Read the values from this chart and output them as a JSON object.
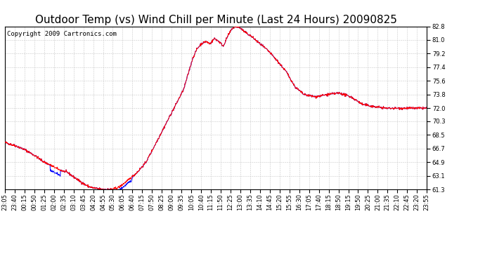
{
  "title": "Outdoor Temp (vs) Wind Chill per Minute (Last 24 Hours) 20090825",
  "copyright_text": "Copyright 2009 Cartronics.com",
  "y_ticks": [
    61.3,
    63.1,
    64.9,
    66.7,
    68.5,
    70.3,
    72.0,
    73.8,
    75.6,
    77.4,
    79.2,
    81.0,
    82.8
  ],
  "y_min": 61.3,
  "y_max": 82.8,
  "x_labels": [
    "23:05",
    "23:40",
    "00:15",
    "00:50",
    "01:25",
    "02:00",
    "02:35",
    "03:10",
    "03:45",
    "04:20",
    "04:55",
    "05:30",
    "06:05",
    "06:40",
    "07:15",
    "07:50",
    "08:25",
    "09:00",
    "09:35",
    "10:05",
    "10:40",
    "11:15",
    "11:50",
    "12:25",
    "13:00",
    "13:35",
    "14:10",
    "14:45",
    "15:20",
    "15:55",
    "16:30",
    "17:05",
    "17:40",
    "18:15",
    "18:50",
    "19:15",
    "19:50",
    "20:25",
    "21:00",
    "21:35",
    "22:10",
    "22:45",
    "23:20",
    "23:55"
  ],
  "line_color_red": "#FF0000",
  "line_color_blue": "#0000FF",
  "background_color": "#FFFFFF",
  "grid_color": "#C8C8C8",
  "title_fontsize": 11,
  "copyright_fontsize": 6.5,
  "tick_fontsize": 6,
  "key_t": [
    0,
    15,
    40,
    70,
    100,
    130,
    155,
    170,
    185,
    200,
    215,
    225,
    240,
    255,
    270,
    285,
    300,
    315,
    330,
    345,
    360,
    375,
    390,
    420,
    450,
    480,
    510,
    530,
    550,
    570,
    590,
    610,
    625,
    640,
    655,
    670,
    685,
    700,
    715,
    730,
    745,
    760,
    775,
    790,
    805,
    820,
    840,
    870,
    900,
    930,
    960,
    990,
    1020,
    1060,
    1100,
    1140,
    1180,
    1220,
    1260,
    1300,
    1340,
    1380,
    1439
  ],
  "key_v": [
    67.5,
    67.3,
    67.0,
    66.5,
    65.8,
    65.0,
    64.5,
    64.2,
    63.9,
    63.7,
    63.5,
    63.2,
    62.8,
    62.4,
    62.0,
    61.7,
    61.5,
    61.4,
    61.3,
    61.3,
    61.3,
    61.4,
    61.6,
    62.5,
    63.5,
    64.8,
    67.0,
    68.5,
    70.0,
    71.5,
    73.0,
    74.5,
    76.5,
    78.5,
    79.8,
    80.5,
    80.8,
    80.5,
    81.2,
    80.8,
    80.2,
    81.5,
    82.5,
    82.8,
    82.5,
    82.0,
    81.5,
    80.5,
    79.5,
    78.2,
    76.8,
    74.8,
    73.8,
    73.5,
    73.8,
    74.0,
    73.5,
    72.5,
    72.2,
    72.0,
    72.0,
    72.0,
    72.0
  ],
  "blue_ranges": [
    [
      155,
      190
    ],
    [
      370,
      435
    ]
  ],
  "blue_offsets": [
    -0.7,
    -0.4
  ]
}
